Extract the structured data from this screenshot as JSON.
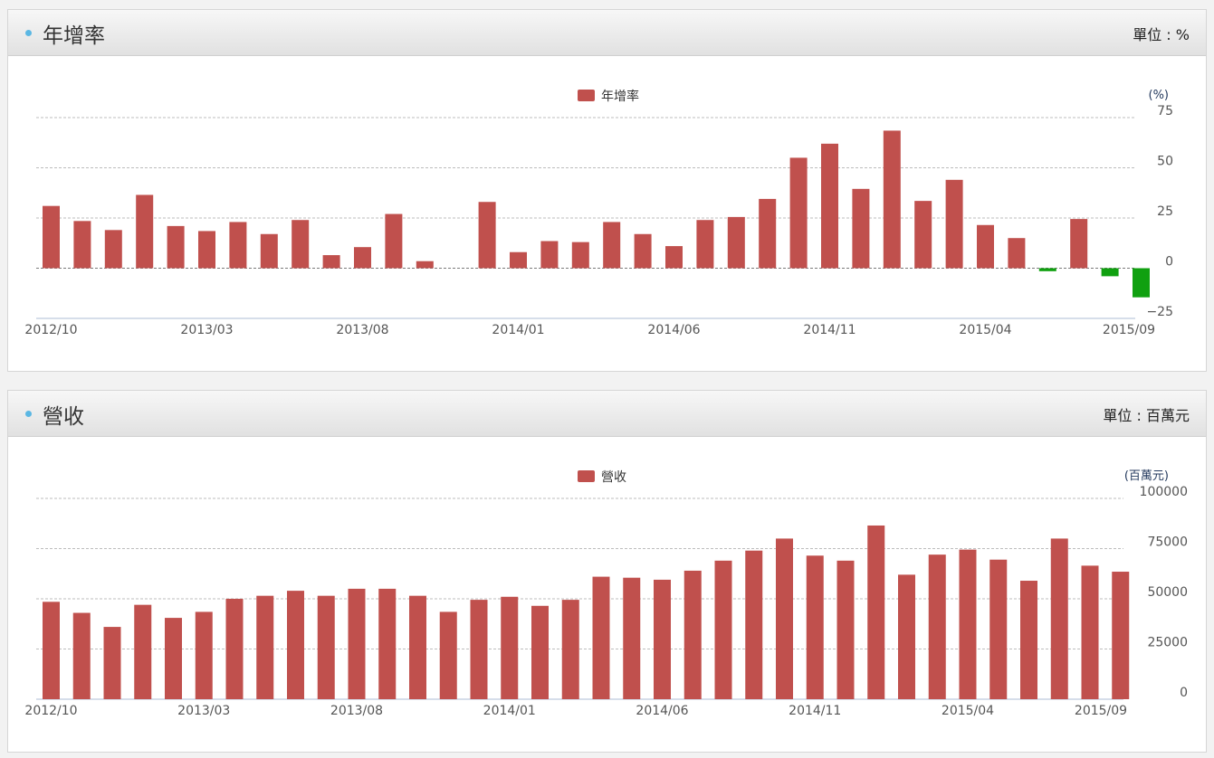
{
  "panels": [
    {
      "title": "年增率",
      "unit_label": "單位 : %",
      "colors": {
        "positive": "#c0504d",
        "negative": "#10a010"
      }
    },
    {
      "title": "營收",
      "unit_label": "單位 : 百萬元",
      "colors": {
        "positive": "#c0504d"
      }
    }
  ],
  "chart_data": [
    {
      "type": "bar",
      "legend": "年增率",
      "axis_unit": "(%)",
      "ylim": [
        -25,
        75
      ],
      "yticks": [
        "75",
        "50",
        "25",
        "0",
        "−25"
      ],
      "ytick_values": [
        75,
        50,
        25,
        0,
        -25
      ],
      "grid": true,
      "legend_position": "top-center",
      "xtick_labels": [
        "2012/10",
        "2013/03",
        "2013/08",
        "2014/01",
        "2014/06",
        "2014/11",
        "2015/04",
        "2015/09"
      ],
      "xtick_indices": [
        0,
        5,
        10,
        15,
        20,
        25,
        30,
        35
      ],
      "values": [
        31,
        23.5,
        19,
        36.5,
        21,
        18.5,
        23,
        17,
        24,
        6.5,
        10.5,
        27,
        3.5,
        0,
        33,
        8,
        13.5,
        13,
        23,
        17,
        11,
        24,
        25.5,
        34.5,
        55,
        62,
        39.5,
        68.5,
        33.5,
        44,
        21.5,
        15,
        -1.5,
        24.5,
        -4,
        -14.5
      ]
    },
    {
      "type": "bar",
      "legend": "營收",
      "axis_unit": "(百萬元)",
      "ylim": [
        0,
        100000
      ],
      "yticks": [
        "100000",
        "75000",
        "50000",
        "25000",
        "0"
      ],
      "ytick_values": [
        100000,
        75000,
        50000,
        25000,
        0
      ],
      "grid": true,
      "legend_position": "top-center",
      "xtick_labels": [
        "2012/10",
        "2013/03",
        "2013/08",
        "2014/01",
        "2014/06",
        "2014/11",
        "2015/04",
        "2015/09"
      ],
      "xtick_indices": [
        0,
        5,
        10,
        15,
        20,
        25,
        30,
        35
      ],
      "values": [
        48500,
        43000,
        36000,
        47000,
        40500,
        43500,
        50000,
        51500,
        54000,
        51500,
        55000,
        55000,
        51500,
        43500,
        49500,
        51000,
        46500,
        49500,
        61000,
        60500,
        59500,
        64000,
        69000,
        74000,
        80000,
        71500,
        69000,
        86500,
        62000,
        72000,
        74500,
        69500,
        59000,
        80000,
        66500,
        63500
      ]
    }
  ]
}
